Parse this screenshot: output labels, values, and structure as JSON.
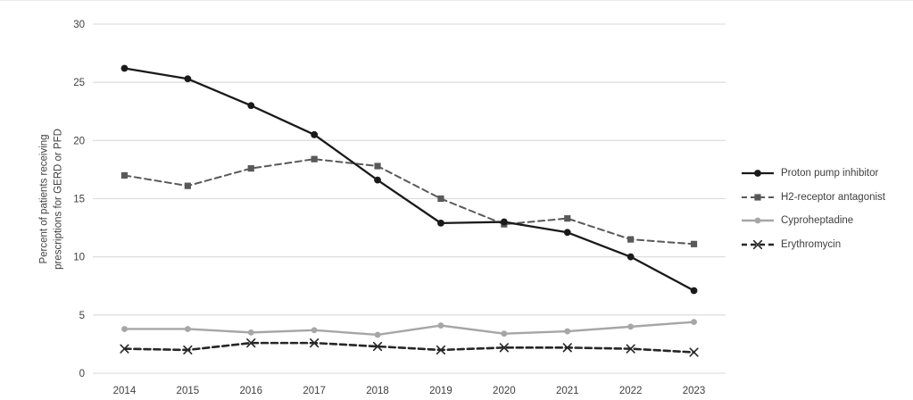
{
  "figure": {
    "background": "#ffffff",
    "border_top_color": "#ececec"
  },
  "chart_data": {
    "type": "line",
    "title": "",
    "xlabel": "",
    "ylabel_lines": [
      "Percent of patients receiving",
      "prescriptions for GERD or PFD"
    ],
    "x_categories": [
      "2014",
      "2015",
      "2016",
      "2017",
      "2018",
      "2019",
      "2020",
      "2021",
      "2022",
      "2023"
    ],
    "ylim": [
      0,
      30
    ],
    "yticks": [
      0,
      5,
      10,
      15,
      20,
      25,
      30
    ],
    "grid": true,
    "gridline_color": "#d9d9d9",
    "axis_text_color": "#404040",
    "legend_position": "right",
    "series": [
      {
        "name": "Proton pump inhibitor",
        "color": "#1a1a1a",
        "line_style": "solid",
        "marker": "circle",
        "values": [
          26.2,
          25.3,
          23.0,
          20.5,
          16.6,
          12.9,
          13.0,
          12.1,
          10.0,
          7.1
        ]
      },
      {
        "name": "H2-receptor antagonist",
        "color": "#595959",
        "line_style": "dashed",
        "marker": "square",
        "values": [
          17.0,
          16.1,
          17.6,
          18.4,
          17.8,
          15.0,
          12.8,
          13.3,
          11.5,
          11.1
        ]
      },
      {
        "name": "Cyproheptadine",
        "color": "#a6a6a6",
        "line_style": "solid",
        "marker": "circle",
        "values": [
          3.8,
          3.8,
          3.5,
          3.7,
          3.3,
          4.1,
          3.4,
          3.6,
          4.0,
          4.4
        ]
      },
      {
        "name": "Erythromycin",
        "color": "#262626",
        "line_style": "dashed",
        "marker": "x",
        "values": [
          2.1,
          2.0,
          2.6,
          2.6,
          2.3,
          2.0,
          2.2,
          2.2,
          2.1,
          1.8
        ]
      }
    ]
  }
}
